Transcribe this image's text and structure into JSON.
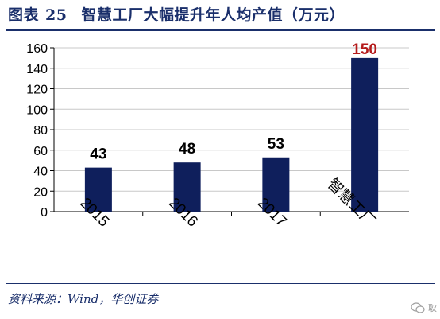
{
  "figure": {
    "prefix": "图表",
    "number": "25",
    "title": "智慧工厂大幅提升年人均产值（万元）"
  },
  "chart_data": {
    "type": "bar",
    "categories": [
      "2015",
      "2016",
      "2017",
      "智慧工厂"
    ],
    "values": [
      43,
      48,
      53,
      150
    ],
    "data_labels": [
      "43",
      "48",
      "53",
      "150"
    ],
    "ylim": [
      0,
      160
    ],
    "yticks": [
      0,
      20,
      40,
      60,
      80,
      100,
      120,
      140,
      160
    ],
    "grid": true,
    "bar_color": "#0f1f5c",
    "label_color": "#000000",
    "highlight_label_color": "#b51b1b",
    "grid_color": "#c8c8c8",
    "legend": "none"
  },
  "source": "资料来源：Wind，华创证券",
  "watermark": "耿"
}
